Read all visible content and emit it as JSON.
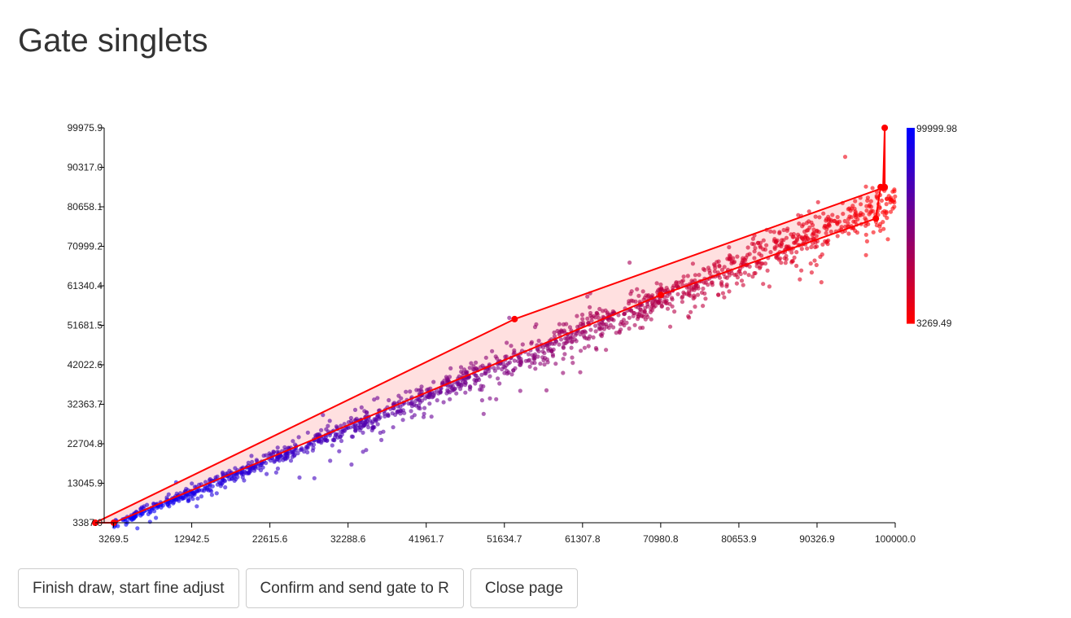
{
  "page": {
    "title": "Gate singlets"
  },
  "buttons": {
    "finish": "Finish draw, start fine adjust",
    "confirm": "Confirm and send gate to R",
    "close": "Close page"
  },
  "colors": {
    "low": "#0000ff",
    "high": "#ff0000",
    "gate": "#ff0000"
  },
  "chart_data": {
    "type": "scatter",
    "title": "",
    "xlabel": "",
    "ylabel": "",
    "xlim": [
      1000,
      100000
    ],
    "ylim": [
      3387.0,
      99975.9
    ],
    "x_ticks": [
      "3269.5",
      "12942.5",
      "22615.6",
      "32288.6",
      "41961.7",
      "51634.7",
      "61307.8",
      "70980.8",
      "80653.9",
      "90326.9",
      "100000.0"
    ],
    "y_ticks": [
      "3387.0",
      "13045.9",
      "22704.8",
      "32363.7",
      "42022.6",
      "51681.5",
      "61340.4",
      "70999.2",
      "80658.1",
      "90317.0",
      "99975.9"
    ],
    "color_scale": {
      "min_label": "3269.49",
      "max_label": "99999.98"
    },
    "point_cloud": {
      "slope": 0.81,
      "intercept": 500,
      "x_min": 3300,
      "x_max": 100000
    },
    "gate_polygon": {
      "x": [
        1000,
        3300,
        71000,
        97600,
        98200,
        98700,
        98700,
        98500,
        52900,
        1000
      ],
      "y": [
        3387,
        3387,
        59100,
        77800,
        85500,
        85500,
        99975.9,
        85300,
        53200,
        3387
      ]
    }
  }
}
